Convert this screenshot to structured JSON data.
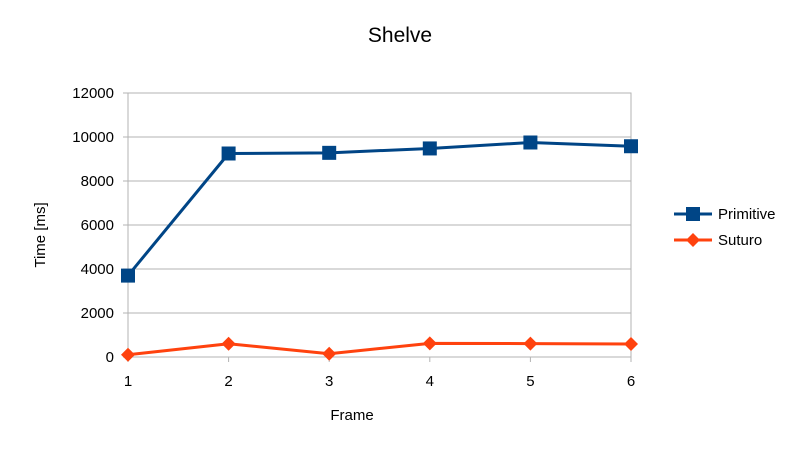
{
  "chart_data": {
    "type": "line",
    "title": "Shelve",
    "xlabel": "Frame",
    "ylabel": "Time [ms]",
    "x": [
      1,
      2,
      3,
      4,
      5,
      6
    ],
    "x_tick_labels": [
      "1",
      "2",
      "3",
      "4",
      "5",
      "6"
    ],
    "ylim": [
      0,
      12000
    ],
    "y_tick_labels": [
      "0",
      "2000",
      "4000",
      "6000",
      "8000",
      "10000",
      "12000"
    ],
    "grid": "horizontal",
    "legend_position": "right",
    "series": [
      {
        "name": "Primitive",
        "color": "#004586",
        "marker": "square",
        "values": [
          3700,
          9250,
          9280,
          9480,
          9750,
          9580
        ]
      },
      {
        "name": "Suturo",
        "color": "#ff420e",
        "marker": "diamond",
        "values": [
          100,
          600,
          150,
          620,
          610,
          590
        ]
      }
    ]
  }
}
